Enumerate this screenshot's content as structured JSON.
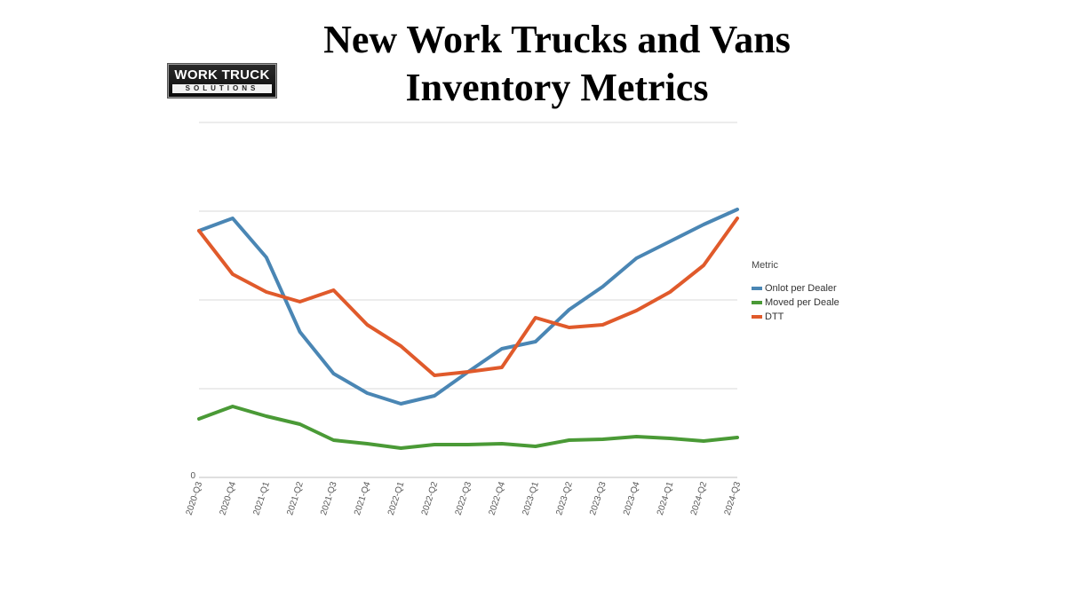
{
  "title": "New Work Trucks and Vans Inventory Metrics",
  "logo": {
    "top": "WORK TRUCK",
    "bottom": "SOLUTIONS"
  },
  "chart_data": {
    "type": "line",
    "title": "New Work Trucks and Vans Inventory Metrics",
    "categories": [
      "2020-Q3",
      "2020-Q4",
      "2021-Q1",
      "2021-Q2",
      "2021-Q3",
      "2021-Q4",
      "2022-Q1",
      "2022-Q2",
      "2022-Q3",
      "2022-Q4",
      "2023-Q1",
      "2023-Q2",
      "2023-Q3",
      "2023-Q4",
      "2024-Q1",
      "2024-Q2",
      "2024-Q3"
    ],
    "y_tick_labels": [
      {
        "value": 0,
        "label": "0"
      }
    ],
    "ylim": [
      0,
      4
    ],
    "grid": true,
    "legend": {
      "title": "Metric",
      "position": "right"
    },
    "series": [
      {
        "name": "Onlot per Dealer",
        "color": "#4a86b4",
        "values": [
          2.78,
          2.92,
          2.48,
          1.64,
          1.17,
          0.95,
          0.83,
          0.92,
          1.19,
          1.45,
          1.53,
          1.89,
          2.15,
          2.47,
          2.66,
          2.85,
          3.02
        ]
      },
      {
        "name": "Moved per Deale",
        "color": "#4a9a36",
        "values": [
          0.66,
          0.8,
          0.69,
          0.6,
          0.42,
          0.38,
          0.33,
          0.37,
          0.37,
          0.38,
          0.35,
          0.42,
          0.43,
          0.46,
          0.44,
          0.41,
          0.45
        ]
      },
      {
        "name": "DTT",
        "color": "#e05a2b",
        "values": [
          2.78,
          2.29,
          2.09,
          1.98,
          2.11,
          1.72,
          1.48,
          1.15,
          1.19,
          1.24,
          1.8,
          1.69,
          1.72,
          1.88,
          2.09,
          2.39,
          2.92
        ]
      }
    ]
  }
}
